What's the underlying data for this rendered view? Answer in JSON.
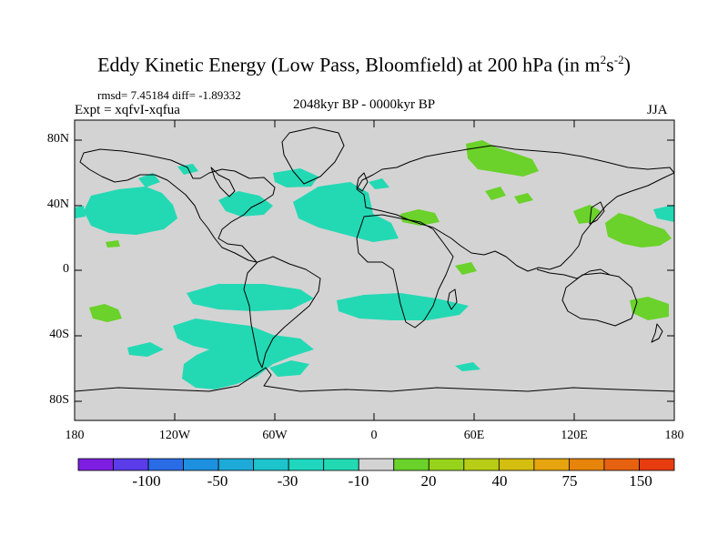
{
  "title": {
    "main": "Eddy Kinetic Energy (Low Pass, Bloomfield) at 200 hPa (in m",
    "exp1": "2",
    "mid": "s",
    "exp2": "-2",
    "end": ")"
  },
  "stats": "rmsd= 7.45184 diff= -1.89332",
  "experiment": "Expt = xqfvI-xqfua",
  "period": "2048kyr BP - 0000kyr BP",
  "season": "JJA",
  "map": {
    "lat_labels": [
      "80N",
      "40N",
      "0",
      "40S",
      "80S"
    ],
    "lon_labels": [
      "180",
      "120W",
      "60W",
      "0",
      "60E",
      "120E",
      "180"
    ],
    "colors": {
      "land_bg": "#d3d3d3",
      "coast": "#000000",
      "neg_fill": "#23d9b4",
      "pos_fill": "#6ad22a"
    }
  },
  "colorbar": {
    "colors": [
      "#7d1ee0",
      "#5a3ce8",
      "#2a6ce6",
      "#1e90e0",
      "#1eaad8",
      "#1ec4cc",
      "#20d6be",
      "#23d9b4",
      "#d3d3d3",
      "#6ad22a",
      "#98d31c",
      "#b8ce16",
      "#d4be10",
      "#e6a40e",
      "#e6840c",
      "#e66210",
      "#e63c10"
    ],
    "labels": [
      "-100",
      "-50",
      "-30",
      "-10",
      "20",
      "40",
      "75",
      "150"
    ]
  }
}
